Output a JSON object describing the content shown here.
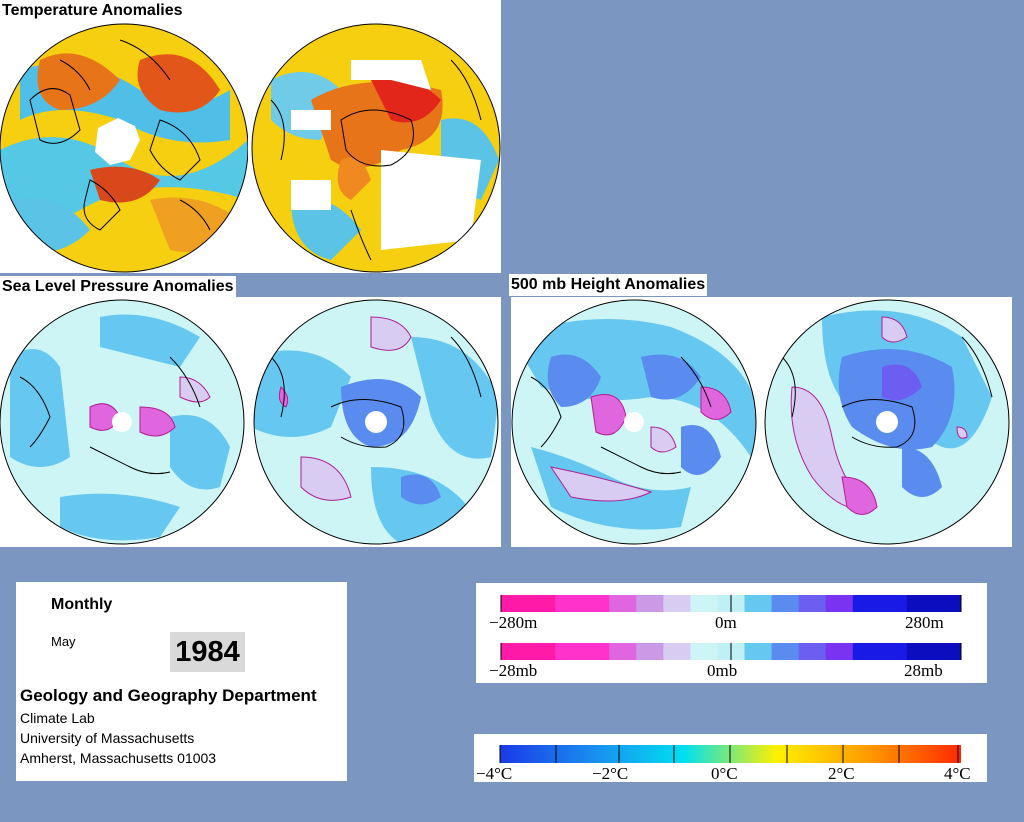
{
  "titles": {
    "temperature": "Temperature Anomalies",
    "slp": "Sea Level Pressure Anomalies",
    "height500": "500 mb Height Anomalies"
  },
  "info": {
    "period": "Monthly",
    "month": "May",
    "year": "1984",
    "department": "Geology and Geography Department",
    "lab": "Climate Lab",
    "university": "University of Massachusetts",
    "address": "Amherst, Massachusetts 01003"
  },
  "legend_height": {
    "min_label": "−280m",
    "mid_label": "0m",
    "max_label": "280m",
    "colors": [
      "#ff1aa8",
      "#ff1aa8",
      "#ff33cc",
      "#ff33cc",
      "#e066e0",
      "#cc99e6",
      "#d9ccf2",
      "#cdf5f5",
      "#bff0f5",
      "#66c8f0",
      "#5a8cf0",
      "#6b5ef0",
      "#7a33f0",
      "#1a1ae6",
      "#1a1ae6",
      "#0d0dc0",
      "#0d0dc0"
    ]
  },
  "legend_pressure": {
    "min_label": "−28mb",
    "mid_label": "0mb",
    "max_label": "28mb"
  },
  "legend_temp": {
    "labels": [
      "−4°C",
      "−2°C",
      "0°C",
      "2°C",
      "4°C"
    ],
    "gradient": [
      "#1a3ae6",
      "#1a8cf0",
      "#00e0f0",
      "#fff000",
      "#ff9a00",
      "#ff2a00"
    ]
  },
  "colors": {
    "background": "#7b97c1",
    "land_outline": "#000000",
    "no_data": "#ffffff"
  }
}
